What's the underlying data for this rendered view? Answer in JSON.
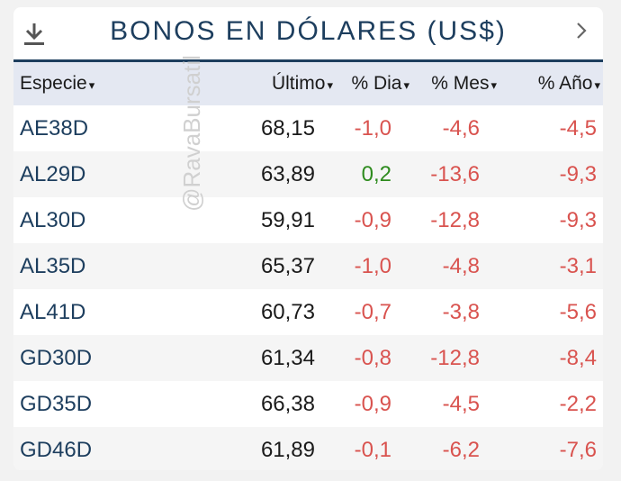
{
  "header": {
    "title": "BONOS EN DÓLARES (US$)"
  },
  "columns": {
    "especie": "Especie",
    "ultimo": "Último",
    "dia": "% Dia",
    "mes": "% Mes",
    "ano": "% Año",
    "sort_glyph": "▾"
  },
  "rows": [
    {
      "ticker": "AE38D",
      "ultimo": "68,15",
      "dia": "-1,0",
      "mes": "-4,6",
      "ano": "-4,5"
    },
    {
      "ticker": "AL29D",
      "ultimo": "63,89",
      "dia": "0,2",
      "mes": "-13,6",
      "ano": "-9,3"
    },
    {
      "ticker": "AL30D",
      "ultimo": "59,91",
      "dia": "-0,9",
      "mes": "-12,8",
      "ano": "-9,3"
    },
    {
      "ticker": "AL35D",
      "ultimo": "65,37",
      "dia": "-1,0",
      "mes": "-4,8",
      "ano": "-3,1"
    },
    {
      "ticker": "AL41D",
      "ultimo": "60,73",
      "dia": "-0,7",
      "mes": "-3,8",
      "ano": "-5,6"
    },
    {
      "ticker": "GD30D",
      "ultimo": "61,34",
      "dia": "-0,8",
      "mes": "-12,8",
      "ano": "-8,4"
    },
    {
      "ticker": "GD35D",
      "ultimo": "66,38",
      "dia": "-0,9",
      "mes": "-4,5",
      "ano": "-2,2"
    },
    {
      "ticker": "GD46D",
      "ultimo": "61,89",
      "dia": "-0,1",
      "mes": "-6,2",
      "ano": "-7,6"
    }
  ],
  "watermark": "@RavaBursatil",
  "icons": {
    "download": "download-icon",
    "next": "chevron-right-icon"
  },
  "colors": {
    "title": "#1d3e5e",
    "negative": "#d9534f",
    "positive": "#2e8b1e",
    "header_bg": "#e4e8f2"
  }
}
